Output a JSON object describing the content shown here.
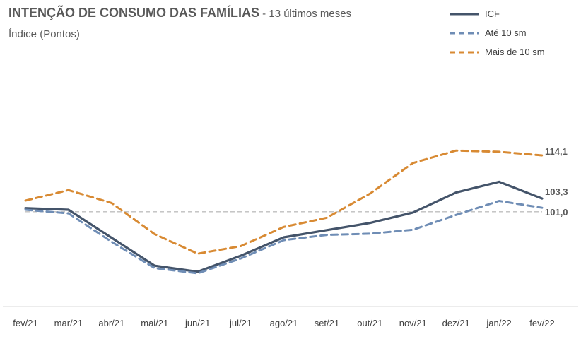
{
  "header": {
    "title": "INTENÇÃO DE CONSUMO DAS FAMÍLIAS",
    "title_suffix": " - 13 últimos meses",
    "subtitle": "Índice (Pontos)"
  },
  "chart_data": {
    "type": "line",
    "title": "INTENÇÃO DE CONSUMO DAS FAMÍLIAS - 13 últimos meses",
    "ylabel": "Índice (Pontos)",
    "xlabel": "",
    "categories": [
      "fev/21",
      "mar/21",
      "abr/21",
      "mai/21",
      "jun/21",
      "jul/21",
      "ago/21",
      "set/21",
      "out/21",
      "nov/21",
      "dez/21",
      "jan/22",
      "fev/22"
    ],
    "ylim": [
      77,
      130
    ],
    "reference_line": 100,
    "legend_position": "top-right",
    "grid": false,
    "series": [
      {
        "name": "ICF",
        "color": "#44546A",
        "dash": "solid",
        "values": [
          100.9,
          100.5,
          93.5,
          86.5,
          85.0,
          89.0,
          93.6,
          95.4,
          97.2,
          99.8,
          104.8,
          107.5,
          103.3
        ],
        "end_label": "103,3"
      },
      {
        "name": "Até 10 sm",
        "color": "#6F8DB5",
        "dash": "dashed",
        "values": [
          100.5,
          99.6,
          92.5,
          85.9,
          84.6,
          88.3,
          92.9,
          94.2,
          94.5,
          95.5,
          99.2,
          102.7,
          101.0
        ],
        "end_label": "101,0"
      },
      {
        "name": "Mais de 10 sm",
        "color": "#D88A33",
        "dash": "dashed",
        "values": [
          102.8,
          105.4,
          102.2,
          94.4,
          89.5,
          91.4,
          96.2,
          98.5,
          104.5,
          112.2,
          115.3,
          115.0,
          114.1
        ],
        "end_label": "114,1"
      }
    ]
  }
}
